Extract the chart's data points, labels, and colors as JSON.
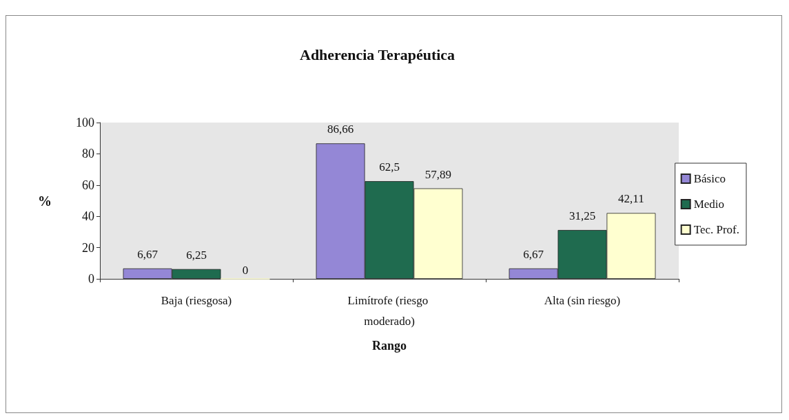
{
  "chart_data": {
    "type": "bar",
    "title": "Adherencia Terapéutica",
    "xlabel": "Rango",
    "ylabel": "%",
    "categories": [
      "Baja (riesgosa)",
      "Limítrofe (riesgo moderado)",
      "Alta (sin riesgo)"
    ],
    "series": [
      {
        "name": "Básico",
        "color": "#9487d6",
        "values": [
          6.67,
          86.66,
          6.67
        ],
        "value_labels": [
          "6,67",
          "86,66",
          "6,67"
        ]
      },
      {
        "name": "Medio",
        "color": "#1f6b4f",
        "values": [
          6.25,
          62.5,
          31.25
        ],
        "value_labels": [
          "6,25",
          "62,5",
          "31,25"
        ]
      },
      {
        "name": "Tec. Prof.",
        "color": "#ffffd0",
        "values": [
          0,
          57.89,
          42.11
        ],
        "value_labels": [
          "0",
          "57,89",
          "42,11"
        ]
      }
    ],
    "ylim": [
      0,
      100
    ],
    "yticks": [
      0,
      20,
      40,
      60,
      80,
      100
    ],
    "grid": false,
    "legend": "right"
  }
}
